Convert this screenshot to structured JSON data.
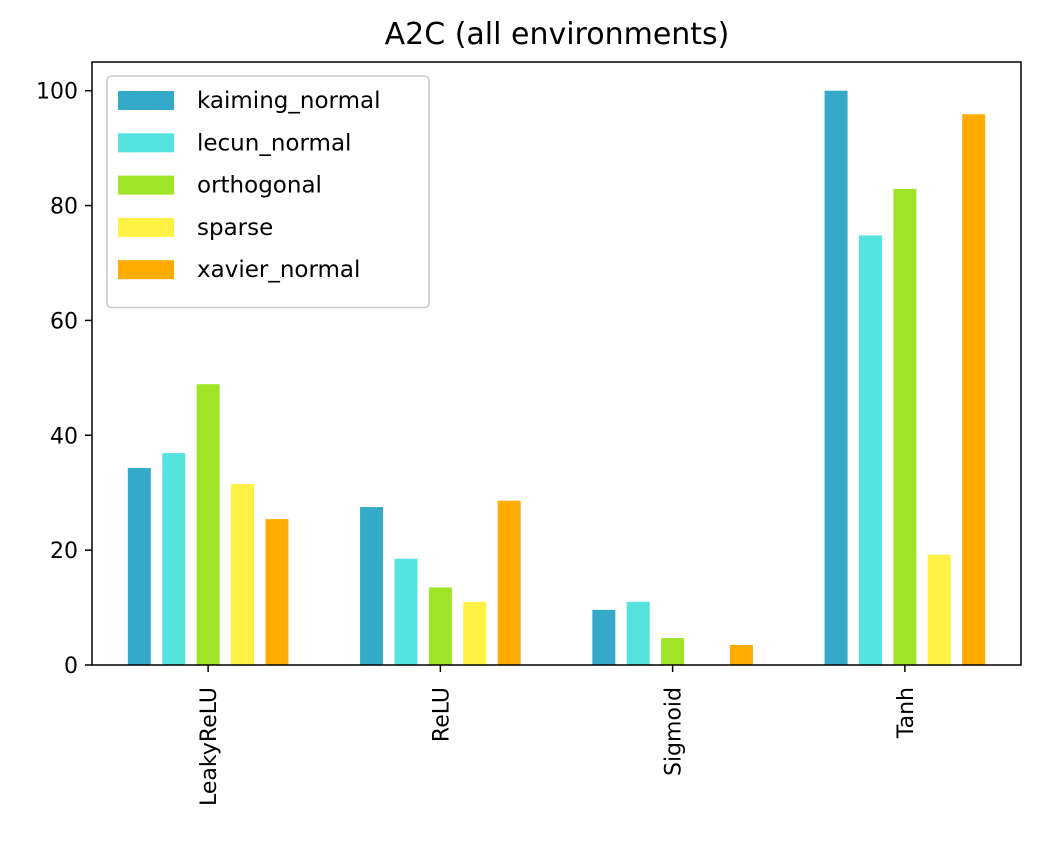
{
  "chart_data": {
    "type": "bar",
    "title": "A2C (all environments)",
    "xlabel": "",
    "ylabel": "",
    "categories": [
      "LeakyReLU",
      "ReLU",
      "Sigmoid",
      "Tanh"
    ],
    "series": [
      {
        "name": "kaiming_normal",
        "color": "#35a9c9",
        "values": [
          34.3,
          27.5,
          9.6,
          100
        ]
      },
      {
        "name": "lecun_normal",
        "color": "#55e3e0",
        "values": [
          36.9,
          18.5,
          11.0,
          74.8
        ]
      },
      {
        "name": "orthogonal",
        "color": "#a0e428",
        "values": [
          48.9,
          13.5,
          4.7,
          82.9
        ]
      },
      {
        "name": "sparse",
        "color": "#fff044",
        "values": [
          31.5,
          11.0,
          0,
          19.2
        ]
      },
      {
        "name": "xavier_normal",
        "color": "#ffab00",
        "values": [
          25.4,
          28.6,
          3.5,
          95.9
        ]
      }
    ],
    "ylim": [
      0,
      105
    ],
    "yticks": [
      0,
      20,
      40,
      60,
      80,
      100
    ],
    "grid": false,
    "legend": "top-left"
  }
}
